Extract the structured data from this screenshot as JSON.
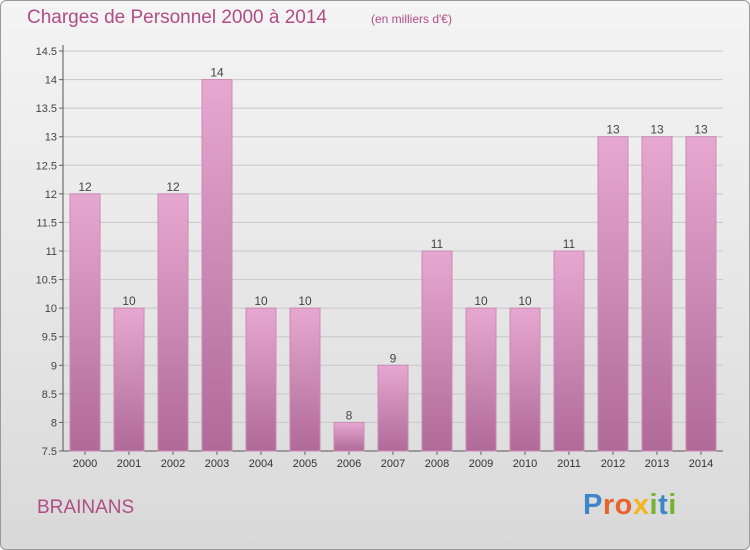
{
  "title": "Charges de Personnel 2000 à 2014",
  "subtitle": "(en milliers d'€)",
  "commune": "BRAINANS",
  "logo": {
    "text": "Proxiti",
    "letters": [
      {
        "char": "P",
        "color": "#3c86c9"
      },
      {
        "char": "r",
        "color": "#e8632c"
      },
      {
        "char": "o",
        "color": "#e8632c"
      },
      {
        "char": "x",
        "color": "#f2b51b"
      },
      {
        "char": "i",
        "color": "#75b22f"
      },
      {
        "char": "t",
        "color": "#3c86c9"
      },
      {
        "char": "i",
        "color": "#75b22f"
      }
    ]
  },
  "colors": {
    "accent": "#b04d86",
    "bar_top": "#e6a8d0",
    "bar_bottom": "#b06a98",
    "bar_edge": "#c98ab5"
  },
  "chart_data": {
    "type": "bar",
    "categories": [
      "2000",
      "2001",
      "2002",
      "2003",
      "2004",
      "2005",
      "2006",
      "2007",
      "2008",
      "2009",
      "2010",
      "2011",
      "2012",
      "2013",
      "2014"
    ],
    "values": [
      12,
      10,
      12,
      14,
      10,
      10,
      8,
      9,
      11,
      10,
      10,
      11,
      13,
      13,
      13
    ],
    "data_labels": [
      "12",
      "10",
      "12",
      "14",
      "10",
      "10",
      "8",
      "9",
      "11",
      "10",
      "10",
      "11",
      "13",
      "13",
      "13"
    ],
    "ylim": [
      7.5,
      14.5
    ],
    "yticks": [
      7.5,
      8,
      8.5,
      9,
      9.5,
      10,
      10.5,
      11,
      11.5,
      12,
      12.5,
      13,
      13.5,
      14,
      14.5
    ],
    "ytick_labels": [
      "7.5",
      "8",
      "8.5",
      "9",
      "9.5",
      "10",
      "10.5",
      "11",
      "11.5",
      "12",
      "12.5",
      "13",
      "13.5",
      "14",
      "14.5"
    ],
    "grid": true,
    "xlabel": "",
    "ylabel": ""
  }
}
